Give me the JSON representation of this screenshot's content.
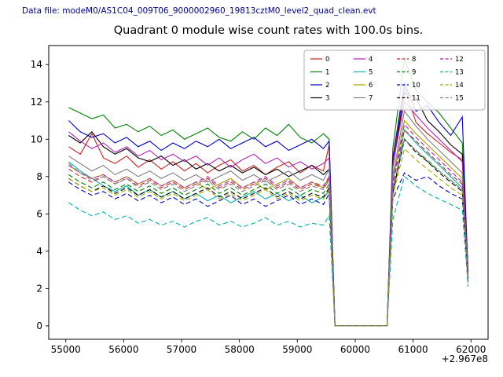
{
  "header": {
    "data_file_label": "Data file: modeM0/AS1C04_009T06_9000002960_19813cztM0_level2_quad_clean.evt"
  },
  "chart_data": {
    "type": "line",
    "title": "Quadrant 0 module wise count rates with 100.0s bins.",
    "xlabel": "",
    "ylabel": "",
    "x_offset_label": "+2.967e8",
    "xlim": [
      54705,
      62295
    ],
    "ylim": [
      -0.72,
      15.02
    ],
    "x_ticks": [
      55000,
      56000,
      57000,
      58000,
      59000,
      60000,
      61000,
      62000
    ],
    "y_ticks": [
      0,
      2,
      4,
      6,
      8,
      10,
      12,
      14
    ],
    "legend": {
      "position": "upper right",
      "columns": 4
    },
    "x": [
      55050,
      55250,
      55450,
      55650,
      55850,
      56050,
      56250,
      56450,
      56650,
      56850,
      57050,
      57250,
      57450,
      57650,
      57850,
      58050,
      58250,
      58450,
      58650,
      58850,
      59050,
      59250,
      59450,
      59550,
      59650,
      59850,
      60050,
      60250,
      60450,
      60550,
      60650,
      60850,
      61050,
      61250,
      61450,
      61650,
      61850,
      61950
    ],
    "series": [
      {
        "name": "0",
        "color": "#cc2222",
        "dash": "solid",
        "values": [
          9.6,
          9.2,
          10.3,
          9.0,
          8.7,
          9.1,
          8.5,
          8.9,
          8.4,
          8.8,
          8.3,
          8.7,
          8.2,
          8.6,
          8.9,
          8.3,
          8.6,
          8.1,
          8.5,
          8.8,
          8.2,
          8.6,
          8.3,
          9.7,
          0,
          0,
          0,
          0,
          0,
          0,
          8.8,
          12.8,
          10.9,
          10.3,
          9.8,
          9.3,
          8.9,
          2.9
        ]
      },
      {
        "name": "1",
        "color": "#008000",
        "dash": "solid",
        "values": [
          11.7,
          11.4,
          11.1,
          11.3,
          10.6,
          10.8,
          10.4,
          10.7,
          10.2,
          10.5,
          10.0,
          10.3,
          10.6,
          10.1,
          9.9,
          10.4,
          10.0,
          10.6,
          10.2,
          10.8,
          10.1,
          9.8,
          10.3,
          10.0,
          0,
          0,
          0,
          0,
          0,
          0,
          9.5,
          14.3,
          12.6,
          12.0,
          11.4,
          10.6,
          9.8,
          3.0
        ]
      },
      {
        "name": "2",
        "color": "#0000cc",
        "dash": "solid",
        "values": [
          11.0,
          10.4,
          10.1,
          10.3,
          9.8,
          10.1,
          9.6,
          9.9,
          9.4,
          9.8,
          9.5,
          9.9,
          9.6,
          10.0,
          9.5,
          9.8,
          10.1,
          9.6,
          9.9,
          9.4,
          9.7,
          10.0,
          9.5,
          9.9,
          0,
          0,
          0,
          0,
          0,
          0,
          9.0,
          13.0,
          11.5,
          11.8,
          10.9,
          10.2,
          11.2,
          2.6
        ]
      },
      {
        "name": "3",
        "color": "#000000",
        "dash": "solid",
        "values": [
          10.2,
          9.8,
          10.4,
          9.6,
          9.2,
          9.5,
          9.0,
          8.8,
          9.1,
          8.6,
          8.9,
          8.4,
          8.7,
          8.3,
          8.6,
          8.2,
          8.5,
          8.1,
          8.4,
          8.0,
          8.3,
          8.6,
          8.1,
          8.4,
          0,
          0,
          0,
          0,
          0,
          0,
          8.5,
          12.5,
          12.2,
          11.0,
          10.4,
          9.7,
          9.2,
          2.8
        ]
      },
      {
        "name": "4",
        "color": "#b522b5",
        "dash": "solid",
        "values": [
          10.4,
          9.9,
          9.5,
          9.8,
          9.3,
          9.6,
          9.1,
          9.4,
          8.9,
          9.2,
          8.8,
          9.1,
          8.6,
          9.0,
          8.5,
          8.9,
          9.2,
          8.7,
          9.0,
          8.5,
          8.8,
          8.4,
          8.7,
          9.0,
          0,
          0,
          0,
          0,
          0,
          0,
          8.6,
          12.0,
          11.3,
          10.6,
          10.0,
          9.4,
          8.8,
          2.7
        ]
      },
      {
        "name": "5",
        "color": "#00b2b2",
        "dash": "solid",
        "values": [
          8.8,
          8.3,
          7.9,
          7.5,
          7.2,
          7.5,
          7.0,
          7.3,
          6.9,
          7.2,
          6.8,
          7.1,
          6.7,
          7.0,
          6.6,
          6.9,
          7.2,
          6.8,
          7.1,
          6.7,
          7.0,
          6.6,
          6.9,
          7.2,
          0,
          0,
          0,
          0,
          0,
          0,
          7.0,
          10.5,
          9.8,
          9.2,
          8.6,
          8.0,
          7.4,
          2.4
        ]
      },
      {
        "name": "6",
        "color": "#a6a600",
        "dash": "solid",
        "values": [
          8.6,
          8.2,
          7.9,
          8.1,
          7.7,
          8.0,
          7.6,
          7.9,
          7.5,
          7.8,
          7.4,
          7.7,
          7.3,
          7.6,
          7.9,
          7.4,
          7.7,
          7.3,
          7.6,
          7.9,
          7.4,
          7.7,
          7.4,
          8.0,
          0,
          0,
          0,
          0,
          0,
          0,
          7.8,
          11.0,
          10.3,
          9.7,
          9.1,
          8.5,
          7.9,
          2.5
        ]
      },
      {
        "name": "7",
        "color": "#7f7f7f",
        "dash": "solid",
        "values": [
          9.1,
          8.7,
          8.3,
          8.6,
          8.1,
          8.4,
          8.0,
          8.3,
          7.9,
          8.2,
          7.8,
          8.1,
          7.7,
          8.0,
          8.3,
          7.8,
          8.1,
          7.7,
          8.0,
          8.3,
          7.8,
          8.1,
          7.8,
          8.4,
          0,
          0,
          0,
          0,
          0,
          0,
          8.0,
          11.5,
          10.7,
          10.0,
          9.4,
          8.8,
          8.2,
          2.6
        ]
      },
      {
        "name": "8",
        "color": "#cc2222",
        "dash": "dashed",
        "values": [
          8.4,
          8.0,
          7.7,
          8.0,
          7.6,
          7.9,
          7.5,
          7.8,
          7.4,
          7.7,
          7.3,
          7.6,
          7.9,
          7.4,
          7.7,
          7.3,
          7.6,
          7.9,
          7.4,
          7.7,
          7.3,
          7.6,
          7.4,
          7.9,
          0,
          0,
          0,
          0,
          0,
          0,
          7.6,
          10.5,
          9.9,
          9.3,
          8.7,
          8.1,
          7.6,
          2.4
        ]
      },
      {
        "name": "9",
        "color": "#008000",
        "dash": "dashed",
        "values": [
          8.1,
          7.7,
          7.4,
          7.7,
          7.3,
          7.6,
          7.2,
          7.5,
          7.1,
          7.4,
          7.0,
          7.3,
          7.6,
          7.1,
          7.4,
          7.0,
          7.3,
          7.6,
          7.1,
          7.4,
          7.0,
          7.3,
          7.1,
          7.6,
          0,
          0,
          0,
          0,
          0,
          0,
          7.3,
          10.0,
          9.4,
          8.8,
          8.3,
          7.8,
          7.3,
          2.3
        ]
      },
      {
        "name": "10",
        "color": "#0000cc",
        "dash": "dashed",
        "values": [
          7.7,
          7.3,
          7.0,
          7.2,
          6.8,
          7.1,
          6.7,
          7.0,
          6.6,
          6.9,
          6.5,
          6.8,
          6.4,
          6.7,
          7.0,
          6.5,
          6.8,
          6.4,
          6.7,
          7.0,
          6.5,
          6.8,
          6.5,
          7.1,
          0,
          0,
          0,
          0,
          0,
          0,
          6.8,
          8.2,
          7.8,
          8.0,
          7.5,
          7.1,
          6.8,
          2.2
        ]
      },
      {
        "name": "11",
        "color": "#000000",
        "dash": "dashed",
        "values": [
          7.9,
          7.5,
          7.2,
          7.5,
          7.1,
          7.4,
          7.0,
          7.3,
          6.9,
          7.2,
          6.8,
          7.1,
          7.4,
          6.9,
          7.2,
          6.8,
          7.1,
          7.4,
          6.9,
          7.2,
          6.8,
          7.1,
          6.9,
          7.4,
          0,
          0,
          0,
          0,
          0,
          0,
          7.1,
          10.0,
          9.3,
          8.8,
          8.2,
          7.7,
          7.2,
          2.3
        ]
      },
      {
        "name": "12",
        "color": "#b522b5",
        "dash": "dashed",
        "values": [
          8.6,
          8.2,
          7.9,
          8.1,
          7.7,
          8.0,
          7.6,
          7.9,
          7.5,
          7.8,
          7.4,
          7.7,
          8.0,
          7.5,
          7.8,
          7.4,
          7.7,
          8.0,
          7.5,
          7.8,
          7.4,
          7.7,
          7.5,
          8.0,
          0,
          0,
          0,
          0,
          0,
          0,
          7.7,
          10.8,
          10.1,
          9.5,
          8.9,
          8.3,
          7.7,
          2.5
        ]
      },
      {
        "name": "13",
        "color": "#00b2b2",
        "dash": "dashed",
        "values": [
          6.6,
          6.2,
          5.9,
          6.1,
          5.7,
          5.9,
          5.5,
          5.7,
          5.4,
          5.6,
          5.3,
          5.6,
          5.8,
          5.4,
          5.6,
          5.3,
          5.5,
          5.8,
          5.4,
          5.6,
          5.3,
          5.5,
          5.4,
          5.9,
          0,
          0,
          0,
          0,
          0,
          0,
          5.7,
          8.0,
          7.5,
          7.1,
          6.8,
          6.5,
          6.2,
          2.1
        ]
      },
      {
        "name": "14",
        "color": "#a6a600",
        "dash": "dashed",
        "values": [
          7.9,
          7.5,
          7.2,
          7.4,
          7.0,
          7.3,
          6.9,
          7.2,
          6.8,
          7.1,
          6.7,
          7.0,
          7.3,
          6.8,
          7.1,
          6.7,
          7.0,
          7.3,
          6.8,
          7.1,
          6.7,
          7.0,
          6.8,
          7.3,
          0,
          0,
          0,
          0,
          0,
          0,
          7.0,
          9.5,
          8.9,
          8.4,
          7.9,
          7.4,
          7.0,
          2.3
        ]
      },
      {
        "name": "15",
        "color": "#7f7f7f",
        "dash": "dashed",
        "values": [
          8.7,
          8.2,
          7.8,
          8.0,
          7.6,
          7.9,
          7.4,
          7.7,
          7.3,
          7.6,
          7.2,
          7.5,
          7.8,
          7.3,
          7.6,
          7.2,
          7.5,
          7.8,
          7.3,
          7.6,
          7.2,
          7.5,
          7.3,
          7.8,
          0,
          0,
          0,
          0,
          0,
          0,
          7.4,
          10.0,
          9.4,
          8.9,
          8.3,
          7.8,
          7.3,
          2.4
        ]
      }
    ]
  }
}
